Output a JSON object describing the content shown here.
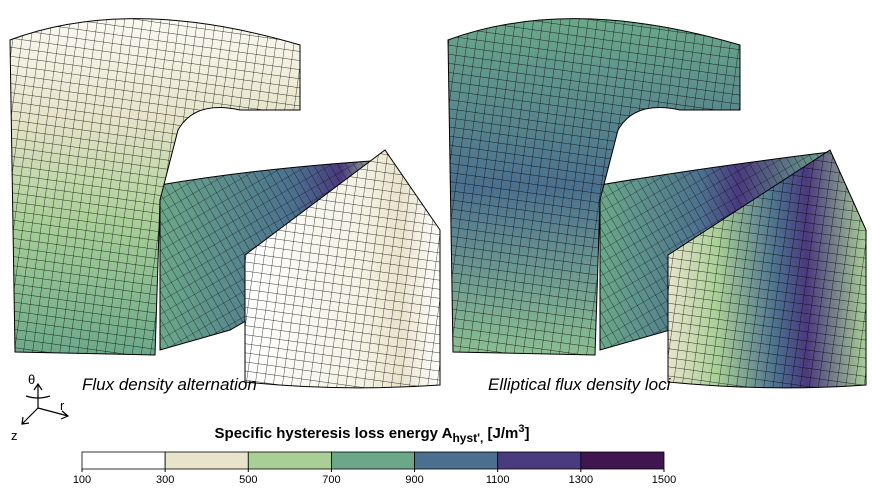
{
  "chart_data": {
    "type": "colorbar",
    "title": {
      "main": "Specific hysteresis loss energy A",
      "sub": "hyst',",
      "unit": " [J/m",
      "sup": "3",
      "end": "]"
    },
    "bins": [
      100,
      300,
      500,
      700,
      900,
      1100,
      1300,
      1500
    ],
    "colors": [
      "#ffffff",
      "#e8e4cc",
      "#a9cf97",
      "#6ba88a",
      "#4b6f8e",
      "#4a3a7e",
      "#3f1650"
    ],
    "xlim": [
      100,
      1500
    ],
    "xticks": [
      100,
      300,
      500,
      700,
      900,
      1100,
      1300,
      1500
    ]
  },
  "panels": [
    {
      "label": "Flux density alternation"
    },
    {
      "label": "Elliptical flux density loci"
    }
  ],
  "axes_triad": {
    "theta": "θ",
    "r": "r",
    "z": "z"
  }
}
